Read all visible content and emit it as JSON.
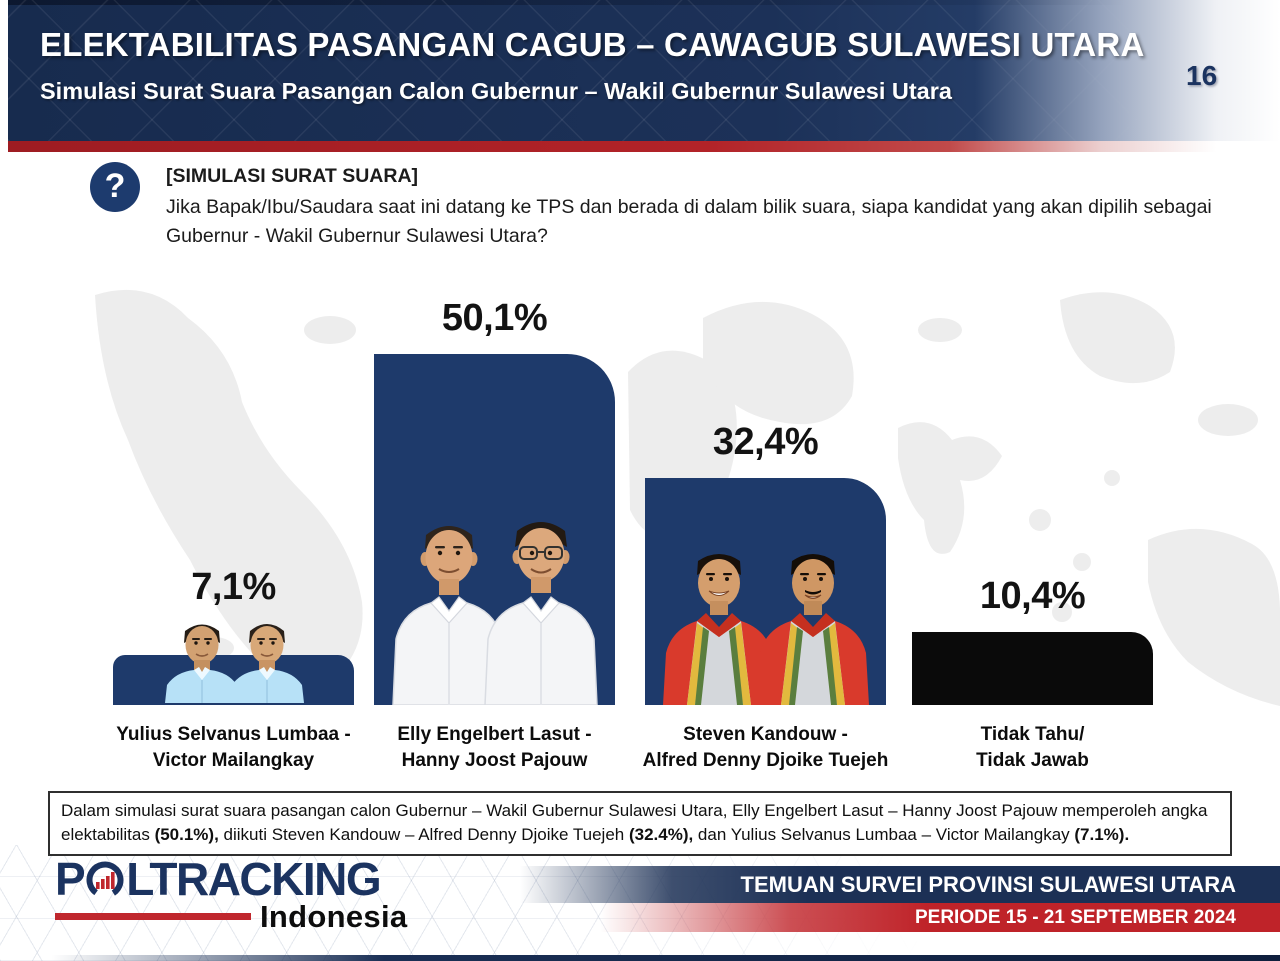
{
  "header": {
    "title": "ELEKTABILITAS PASANGAN CAGUB – CAWAGUB SULAWESI UTARA",
    "subtitle": "Simulasi Surat Suara Pasangan Calon Gubernur – Wakil Gubernur Sulawesi Utara",
    "page_number": "16"
  },
  "question": {
    "icon_glyph": "?",
    "tag": "[SIMULASI SURAT SUARA]",
    "text": "Jika Bapak/Ibu/Saudara saat ini datang ke TPS dan berada di dalam bilik suara, siapa kandidat yang akan dipilih sebagai Gubernur - Wakil Gubernur Sulawesi Utara?"
  },
  "chart_data": {
    "type": "bar",
    "title": "Simulasi Surat Suara Pasangan Calon Gubernur – Wakil Gubernur Sulawesi Utara",
    "categories": [
      "Yulius Selvanus Lumbaa - Victor Mailangkay",
      "Elly Engelbert Lasut - Hanny Joost Pajouw",
      "Steven Kandouw - Alfred Denny Djoike Tuejeh",
      "Tidak Tahu/Tidak Jawab"
    ],
    "values": [
      7.1,
      50.1,
      32.4,
      10.4
    ],
    "value_labels": [
      "7,1%",
      "50,1%",
      "32,4%",
      "10,4%"
    ],
    "label_lines": [
      [
        "Yulius Selvanus Lumbaa -",
        "Victor Mailangkay"
      ],
      [
        "Elly Engelbert Lasut -",
        "Hanny Joost Pajouw"
      ],
      [
        "Steven Kandouw -",
        "Alfred Denny Djoike Tuejeh"
      ],
      [
        "Tidak Tahu/",
        "Tidak Jawab"
      ]
    ],
    "bar_colors": [
      "#1e3a6b",
      "#1e3a6b",
      "#1e3a6b",
      "#0a0a0a"
    ],
    "xlabel": "",
    "ylabel": "",
    "ylim": [
      0,
      55
    ],
    "grid": false,
    "legend": false
  },
  "summary": {
    "segments": [
      {
        "text": "Dalam simulasi surat suara pasangan calon Gubernur – Wakil Gubernur Sulawesi Utara, Elly Engelbert Lasut – Hanny Joost Pajouw memperoleh angka elektabilitas ",
        "bold": false
      },
      {
        "text": "(50.1%),",
        "bold": true
      },
      {
        "text": " diikuti Steven Kandouw – Alfred Denny Djoike Tuejeh ",
        "bold": false
      },
      {
        "text": "(32.4%),",
        "bold": true
      },
      {
        "text": " dan Yulius Selvanus Lumbaa – Victor Mailangkay ",
        "bold": false
      },
      {
        "text": "(7.1%).",
        "bold": true
      }
    ]
  },
  "footer": {
    "logo": {
      "p": "P",
      "rest": "LTRACKING",
      "sub": "Indonesia",
      "icon": "bar-chart-ring-icon"
    },
    "banner_primary": "TEMUAN SURVEI PROVINSI SULAWESI UTARA",
    "banner_secondary": "PERIODE 15 - 21 SEPTEMBER 2024"
  },
  "colors": {
    "header_navy": "#1c3158",
    "bar_navy": "#1e3a6b",
    "bar_black": "#0a0a0a",
    "accent_red": "#b22328",
    "footer_red": "#bf2329",
    "map_gray": "#ededed"
  }
}
